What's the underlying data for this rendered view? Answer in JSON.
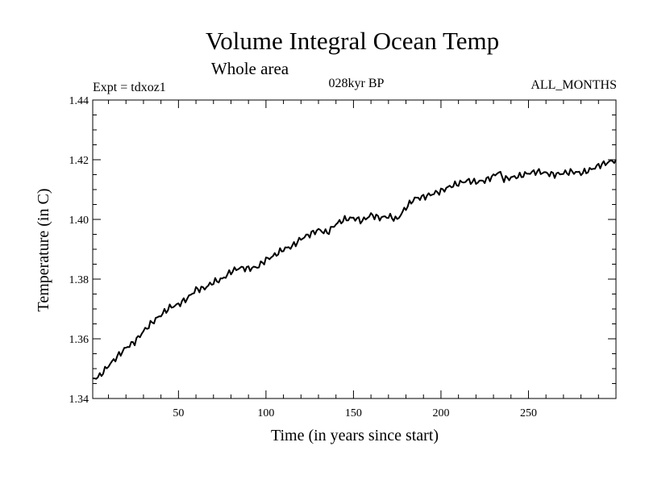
{
  "chart_data": {
    "type": "line",
    "title": "Volume Integral Ocean Temp",
    "subtitle": "Whole area",
    "experiment": "Expt = tdxoz1",
    "period": "028kyr BP",
    "months": "ALL_MONTHS",
    "xlabel": "Time (in years since start)",
    "ylabel": "Temperature (in C)",
    "xlim": [
      1,
      300
    ],
    "ylim": [
      1.34,
      1.44
    ],
    "xticks": [
      50,
      100,
      150,
      200,
      250
    ],
    "xtick_labels": [
      "50",
      "100",
      "150",
      "200",
      "250"
    ],
    "yticks": [
      1.34,
      1.36,
      1.38,
      1.4,
      1.42,
      1.44
    ],
    "ytick_labels": [
      "1.34",
      "1.36",
      "1.38",
      "1.40",
      "1.42",
      "1.44"
    ],
    "grid": false,
    "series": [
      {
        "name": "tdxoz1",
        "color": "#000000",
        "x": [
          1,
          5,
          10,
          15,
          20,
          25,
          30,
          35,
          40,
          45,
          50,
          55,
          60,
          65,
          70,
          75,
          80,
          85,
          90,
          95,
          100,
          105,
          110,
          115,
          120,
          125,
          130,
          135,
          140,
          145,
          150,
          155,
          160,
          165,
          170,
          175,
          180,
          185,
          190,
          195,
          200,
          205,
          210,
          215,
          220,
          225,
          230,
          233,
          236,
          240,
          245,
          250,
          255,
          260,
          265,
          270,
          275,
          280,
          285,
          290,
          295,
          300
        ],
        "y": [
          1.3465,
          1.3475,
          1.351,
          1.354,
          1.357,
          1.359,
          1.3625,
          1.3655,
          1.368,
          1.3705,
          1.3715,
          1.3735,
          1.3765,
          1.377,
          1.379,
          1.38,
          1.3825,
          1.3838,
          1.3835,
          1.384,
          1.3865,
          1.388,
          1.39,
          1.391,
          1.3935,
          1.395,
          1.3965,
          1.3955,
          1.3985,
          1.4,
          1.4005,
          1.3995,
          1.4015,
          1.4005,
          1.401,
          1.4,
          1.404,
          1.407,
          1.4075,
          1.4085,
          1.4095,
          1.411,
          1.412,
          1.413,
          1.4125,
          1.413,
          1.4145,
          1.416,
          1.4135,
          1.414,
          1.4145,
          1.4155,
          1.416,
          1.4155,
          1.415,
          1.4155,
          1.416,
          1.4155,
          1.4165,
          1.418,
          1.419,
          1.42
        ]
      }
    ]
  }
}
